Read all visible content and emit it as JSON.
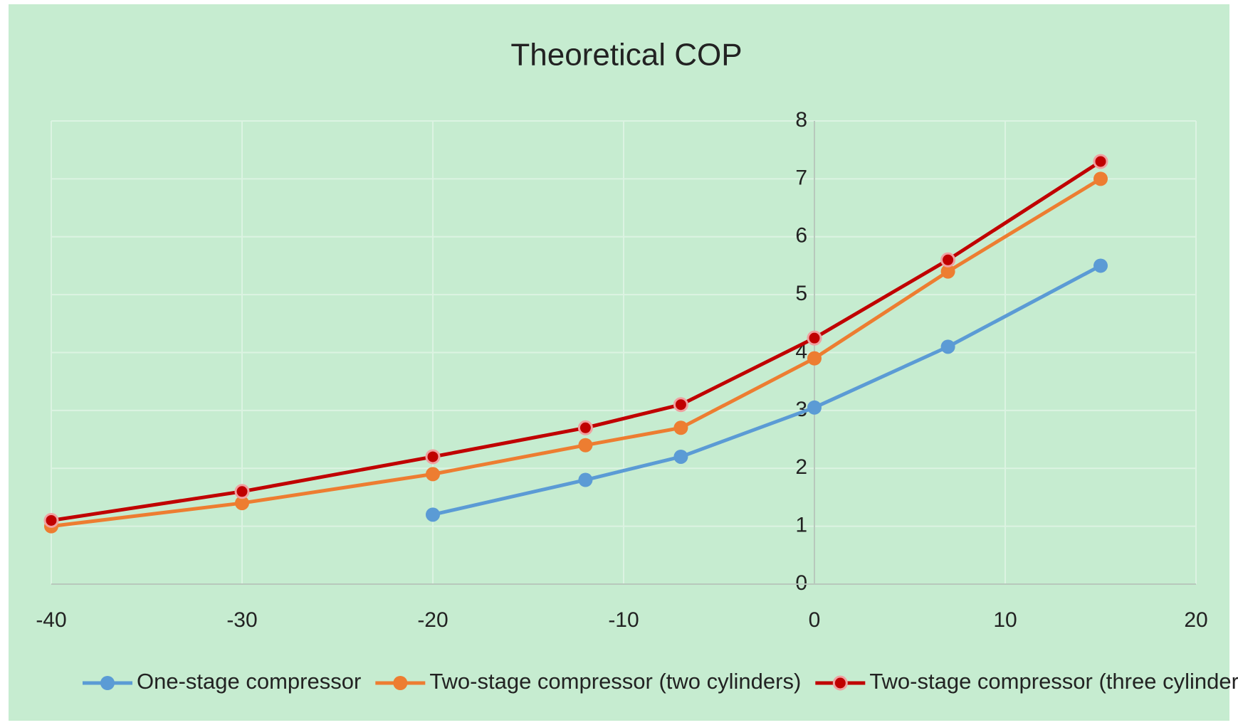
{
  "chart_data": {
    "type": "line",
    "title": "Theoretical COP",
    "x": [
      -40,
      -30,
      -20,
      -12,
      -7,
      0,
      7,
      15
    ],
    "series": [
      {
        "name": "One-stage compressor",
        "color": "#5b9bd5",
        "values": [
          null,
          null,
          1.2,
          1.8,
          2.2,
          3.05,
          4.1,
          5.5
        ]
      },
      {
        "name": "Two-stage compressor (two cylinders)",
        "color": "#ed7d31",
        "values": [
          1.0,
          1.4,
          1.9,
          2.4,
          2.7,
          3.9,
          5.4,
          7.0
        ]
      },
      {
        "name": "Two-stage compressor (three cylinders)",
        "color": "#c00000",
        "values": [
          1.1,
          1.6,
          2.2,
          2.7,
          3.1,
          4.25,
          5.6,
          7.3
        ]
      }
    ],
    "xlim": [
      -40,
      20
    ],
    "xticks": [
      -40,
      -30,
      -20,
      -10,
      0,
      10,
      20
    ],
    "ylim": [
      0,
      8
    ],
    "yticks": [
      0,
      1,
      2,
      3,
      4,
      5,
      6,
      7,
      8
    ],
    "grid": true,
    "legend": "bottom"
  }
}
